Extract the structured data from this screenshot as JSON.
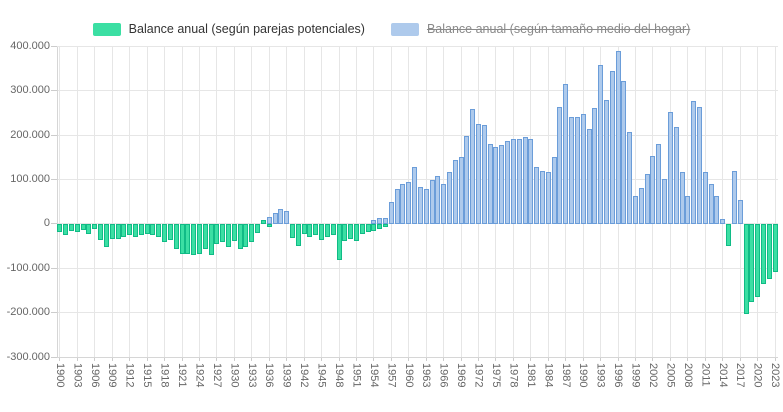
{
  "chart_data": {
    "type": "bar",
    "title": "",
    "xlabel": "",
    "ylabel": "",
    "grid": true,
    "legend_position": "top",
    "ylim": [
      -300000,
      400000
    ],
    "year_start": 1900,
    "year_end": 2023,
    "y_ticks": [
      {
        "label": "400.000",
        "value": 400000
      },
      {
        "label": "300.000",
        "value": 300000
      },
      {
        "label": "200.000",
        "value": 200000
      },
      {
        "label": "100.000",
        "value": 100000
      },
      {
        "label": "0",
        "value": 0
      },
      {
        "label": "-100.000",
        "value": -100000
      },
      {
        "label": "-200.000",
        "value": -200000
      },
      {
        "label": "-300.000",
        "value": -300000
      }
    ],
    "x_ticks": [
      {
        "label": "1900",
        "year": 1900
      },
      {
        "label": "1903",
        "year": 1903
      },
      {
        "label": "1906",
        "year": 1906
      },
      {
        "label": "1909",
        "year": 1909
      },
      {
        "label": "1912",
        "year": 1912
      },
      {
        "label": "1915",
        "year": 1915
      },
      {
        "label": "1918",
        "year": 1918
      },
      {
        "label": "1921",
        "year": 1921
      },
      {
        "label": "1924",
        "year": 1924
      },
      {
        "label": "1927",
        "year": 1927
      },
      {
        "label": "1930",
        "year": 1930
      },
      {
        "label": "1933",
        "year": 1933
      },
      {
        "label": "1936",
        "year": 1936
      },
      {
        "label": "1939",
        "year": 1939
      },
      {
        "label": "1942",
        "year": 1942
      },
      {
        "label": "1945",
        "year": 1945
      },
      {
        "label": "1948",
        "year": 1948
      },
      {
        "label": "1951",
        "year": 1951
      },
      {
        "label": "1954",
        "year": 1954
      },
      {
        "label": "1957",
        "year": 1957
      },
      {
        "label": "1960",
        "year": 1960
      },
      {
        "label": "1963",
        "year": 1963
      },
      {
        "label": "1966",
        "year": 1966
      },
      {
        "label": "1969",
        "year": 1969
      },
      {
        "label": "1972",
        "year": 1972
      },
      {
        "label": "1975",
        "year": 1975
      },
      {
        "label": "1978",
        "year": 1978
      },
      {
        "label": "1981",
        "year": 1981
      },
      {
        "label": "1984",
        "year": 1984
      },
      {
        "label": "1987",
        "year": 1987
      },
      {
        "label": "1990",
        "year": 1990
      },
      {
        "label": "1993",
        "year": 1993
      },
      {
        "label": "1996",
        "year": 1996
      },
      {
        "label": "1999",
        "year": 1999
      },
      {
        "label": "2002",
        "year": 2002
      },
      {
        "label": "2005",
        "year": 2005
      },
      {
        "label": "2008",
        "year": 2008
      },
      {
        "label": "2011",
        "year": 2011
      },
      {
        "label": "2014",
        "year": 2014
      },
      {
        "label": "2017",
        "year": 2017
      },
      {
        "label": "2020",
        "year": 2020
      },
      {
        "label": "2023",
        "year": 2023
      }
    ],
    "series": [
      {
        "name": "Balance anual (según parejas potenciales)",
        "color": "#3bdfa3",
        "border_color": "#10bb86",
        "legend_struck": false,
        "values": [
          -19000,
          -26000,
          -15000,
          -19000,
          -13000,
          -22000,
          -11000,
          -36000,
          -53000,
          -34000,
          -34000,
          -30000,
          -26000,
          -30000,
          -26000,
          -22000,
          -26000,
          -30000,
          -41000,
          -37000,
          -56000,
          -68000,
          -68000,
          -71000,
          -68000,
          -56000,
          -71000,
          -45000,
          -41000,
          -53000,
          -39000,
          -56000,
          -51000,
          -41000,
          -20000,
          8000,
          -8000,
          null,
          null,
          null,
          -32000,
          -49000,
          -22000,
          -30000,
          -26000,
          -37000,
          -30000,
          -26000,
          -82000,
          -38000,
          -34000,
          -38000,
          -22000,
          -19000,
          -15000,
          -11000,
          -8000,
          null,
          null,
          null,
          null,
          null,
          null,
          null,
          null,
          null,
          null,
          null,
          null,
          null,
          null,
          null,
          null,
          null,
          null,
          null,
          null,
          null,
          null,
          null,
          null,
          null,
          null,
          null,
          null,
          null,
          null,
          null,
          null,
          null,
          null,
          null,
          null,
          null,
          null,
          null,
          null,
          null,
          null,
          null,
          null,
          null,
          null,
          null,
          null,
          null,
          null,
          null,
          null,
          null,
          null,
          null,
          null,
          null,
          null,
          -49000,
          null,
          null,
          -203000,
          -177000,
          -165000,
          -135000,
          -124000,
          -109000
        ]
      },
      {
        "name": "Balance anual (según tamaño medio del hogar)",
        "color": "#aecaec",
        "border_color": "#6b9dd9",
        "legend_struck": true,
        "values": [
          null,
          null,
          null,
          null,
          null,
          null,
          null,
          null,
          null,
          null,
          null,
          null,
          null,
          null,
          null,
          null,
          null,
          null,
          null,
          null,
          null,
          null,
          null,
          null,
          null,
          null,
          null,
          null,
          null,
          null,
          null,
          null,
          null,
          null,
          null,
          null,
          15000,
          25000,
          34000,
          30000,
          null,
          null,
          null,
          null,
          null,
          null,
          null,
          null,
          null,
          null,
          null,
          null,
          null,
          null,
          8000,
          13000,
          13000,
          49000,
          79000,
          90000,
          94000,
          128000,
          83000,
          79000,
          98000,
          109000,
          90000,
          117000,
          143000,
          150000,
          199000,
          259000,
          226000,
          222000,
          180000,
          173000,
          177000,
          188000,
          192000,
          192000,
          197000,
          192000,
          128000,
          120000,
          117000,
          150000,
          263000,
          316000,
          241000,
          241000,
          248000,
          214000,
          262000,
          359000,
          279000,
          344000,
          390000,
          323000,
          208000,
          62000,
          80000,
          113000,
          154000,
          181000,
          102000,
          253000,
          218000,
          117000,
          64000,
          278000,
          263000,
          117000,
          90000,
          64000,
          11000,
          null,
          120000,
          53000,
          null,
          null,
          null,
          null,
          null,
          null
        ]
      }
    ]
  }
}
